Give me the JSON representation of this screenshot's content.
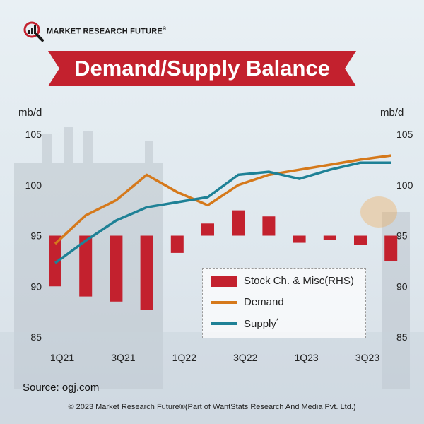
{
  "brand": {
    "name": "MARKET RESEARCH FUTURE",
    "reg": "®"
  },
  "title": "Demand/Supply Balance",
  "colors": {
    "bar": "#c3212e",
    "demand": "#d5791b",
    "supply": "#1e8196",
    "banner": "#c3212e"
  },
  "source": "Source: ogj.com",
  "footer": "© 2023 Market Research Future®(Part of WantStats Research And Media Pvt. Ltd.)",
  "chart_data": {
    "type": "bar+line",
    "left_unit": "mb/d",
    "right_unit": "mb/d",
    "ylim": [
      85,
      105
    ],
    "yticks": [
      85,
      90,
      95,
      100,
      105
    ],
    "categories": [
      "1Q21",
      "2Q21",
      "3Q21",
      "4Q21",
      "1Q22",
      "2Q22",
      "3Q22",
      "4Q22",
      "1Q23",
      "2Q23",
      "3Q23",
      "4Q23"
    ],
    "x_tick_labels": [
      "1Q21",
      "3Q21",
      "1Q22",
      "3Q22",
      "1Q23",
      "3Q23"
    ],
    "legend_placement": "lower-right",
    "series": [
      {
        "name": "Stock Ch. & Misc(RHS)",
        "kind": "bar",
        "baseline": 95,
        "values": [
          90.0,
          89.0,
          88.5,
          87.7,
          93.3,
          96.2,
          97.5,
          96.9,
          94.3,
          94.6,
          94.1,
          92.5
        ]
      },
      {
        "name": "Demand",
        "kind": "line",
        "values": [
          94.2,
          97.0,
          98.5,
          101.0,
          99.3,
          98.0,
          100.0,
          101.0,
          101.5,
          102.0,
          102.5,
          102.9
        ]
      },
      {
        "name": "Supply",
        "marker": "*",
        "kind": "line",
        "values": [
          92.3,
          94.5,
          96.5,
          97.8,
          98.3,
          98.8,
          101.0,
          101.3,
          100.6,
          101.5,
          102.2,
          102.2
        ]
      }
    ]
  }
}
